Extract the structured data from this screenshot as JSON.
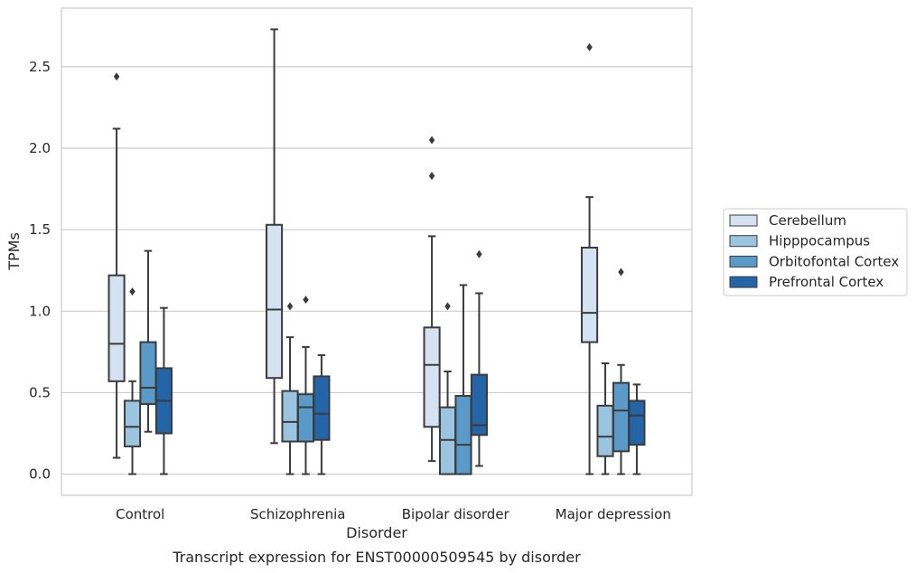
{
  "caption": "Transcript expression for ENST00000509545 by disorder",
  "chart_data": {
    "type": "box",
    "xlabel": "Disorder",
    "ylabel": "TPMs",
    "ylim": [
      -0.13,
      2.86
    ],
    "yticks": [
      "0.0",
      "0.5",
      "1.0",
      "1.5",
      "2.0",
      "2.5"
    ],
    "categories": [
      "Control",
      "Schizophrenia",
      "Bipolar disorder",
      "Major depression"
    ],
    "grid": "horizontal",
    "legend_position": "right",
    "series": [
      {
        "name": "Cerebellum",
        "color": "#d4e2f1",
        "boxes": [
          {
            "whislo": 0.1,
            "q1": 0.57,
            "med": 0.8,
            "q3": 1.22,
            "whishi": 2.12,
            "fliers": [
              2.44
            ]
          },
          {
            "whislo": 0.19,
            "q1": 0.59,
            "med": 1.01,
            "q3": 1.53,
            "whishi": 2.73,
            "fliers": []
          },
          {
            "whislo": 0.08,
            "q1": 0.29,
            "med": 0.67,
            "q3": 0.9,
            "whishi": 1.46,
            "fliers": [
              1.83,
              2.05
            ]
          },
          {
            "whislo": 0.0,
            "q1": 0.81,
            "med": 0.99,
            "q3": 1.39,
            "whishi": 1.7,
            "fliers": [
              2.62
            ]
          }
        ]
      },
      {
        "name": "Hipppocampus",
        "color": "#9ac4df",
        "boxes": [
          {
            "whislo": 0.0,
            "q1": 0.17,
            "med": 0.29,
            "q3": 0.45,
            "whishi": 0.57,
            "fliers": [
              1.12
            ]
          },
          {
            "whislo": 0.0,
            "q1": 0.2,
            "med": 0.32,
            "q3": 0.51,
            "whishi": 0.84,
            "fliers": [
              1.03
            ]
          },
          {
            "whislo": 0.0,
            "q1": 0.0,
            "med": 0.21,
            "q3": 0.41,
            "whishi": 0.63,
            "fliers": [
              1.03
            ]
          },
          {
            "whislo": 0.0,
            "q1": 0.11,
            "med": 0.23,
            "q3": 0.42,
            "whishi": 0.68,
            "fliers": []
          }
        ]
      },
      {
        "name": "Orbitofontal Cortex",
        "color": "#5a9ac8",
        "boxes": [
          {
            "whislo": 0.26,
            "q1": 0.43,
            "med": 0.53,
            "q3": 0.81,
            "whishi": 1.37,
            "fliers": []
          },
          {
            "whislo": 0.0,
            "q1": 0.2,
            "med": 0.41,
            "q3": 0.49,
            "whishi": 0.78,
            "fliers": [
              1.07
            ]
          },
          {
            "whislo": 0.0,
            "q1": 0.0,
            "med": 0.18,
            "q3": 0.48,
            "whishi": 1.16,
            "fliers": []
          },
          {
            "whislo": 0.0,
            "q1": 0.14,
            "med": 0.39,
            "q3": 0.56,
            "whishi": 0.67,
            "fliers": [
              1.24
            ]
          }
        ]
      },
      {
        "name": "Prefrontal Cortex",
        "color": "#2465a7",
        "boxes": [
          {
            "whislo": 0.0,
            "q1": 0.25,
            "med": 0.45,
            "q3": 0.65,
            "whishi": 1.02,
            "fliers": []
          },
          {
            "whislo": 0.0,
            "q1": 0.21,
            "med": 0.37,
            "q3": 0.6,
            "whishi": 0.73,
            "fliers": []
          },
          {
            "whislo": 0.05,
            "q1": 0.24,
            "med": 0.3,
            "q3": 0.61,
            "whishi": 1.11,
            "fliers": [
              1.35
            ]
          },
          {
            "whislo": 0.0,
            "q1": 0.18,
            "med": 0.36,
            "q3": 0.45,
            "whishi": 0.55,
            "fliers": []
          }
        ]
      }
    ]
  }
}
